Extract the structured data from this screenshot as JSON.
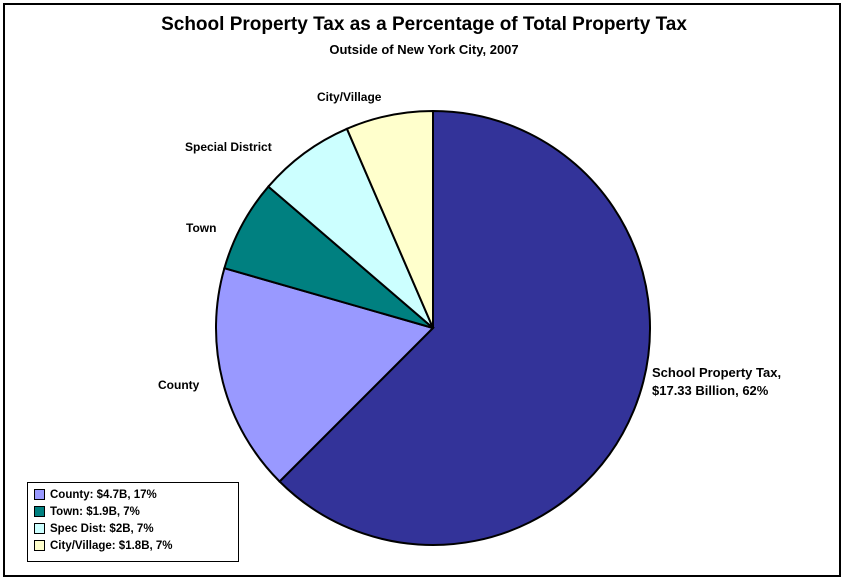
{
  "chart_data": {
    "type": "pie",
    "title": "School Property Tax as a Percentage of Total Property Tax",
    "subtitle": "Outside of New York City, 2007",
    "slices": [
      {
        "label": "School Property Tax,",
        "label2": "$17.33 Billion, 62%",
        "value": 17.33,
        "percent": 62,
        "color": "#333399"
      },
      {
        "label": "County",
        "value": 4.7,
        "percent": 17,
        "color": "#9999ff"
      },
      {
        "label": "Town",
        "value": 1.9,
        "percent": 7,
        "color": "#008080"
      },
      {
        "label": "Special District",
        "value": 2.0,
        "percent": 7,
        "color": "#ccffff"
      },
      {
        "label": "City/Village",
        "value": 1.8,
        "percent": 7,
        "color": "#ffffcc"
      }
    ],
    "legend": {
      "placement": "bottom-left",
      "entries": [
        {
          "text": "County: $4.7B, 17%",
          "color": "#9999ff"
        },
        {
          "text": "Town: $1.9B, 7%",
          "color": "#008080"
        },
        {
          "text": "Spec Dist: $2B, 7%",
          "color": "#ccffff"
        },
        {
          "text": "City/Village: $1.8B, 7%",
          "color": "#ffffcc"
        }
      ]
    }
  }
}
